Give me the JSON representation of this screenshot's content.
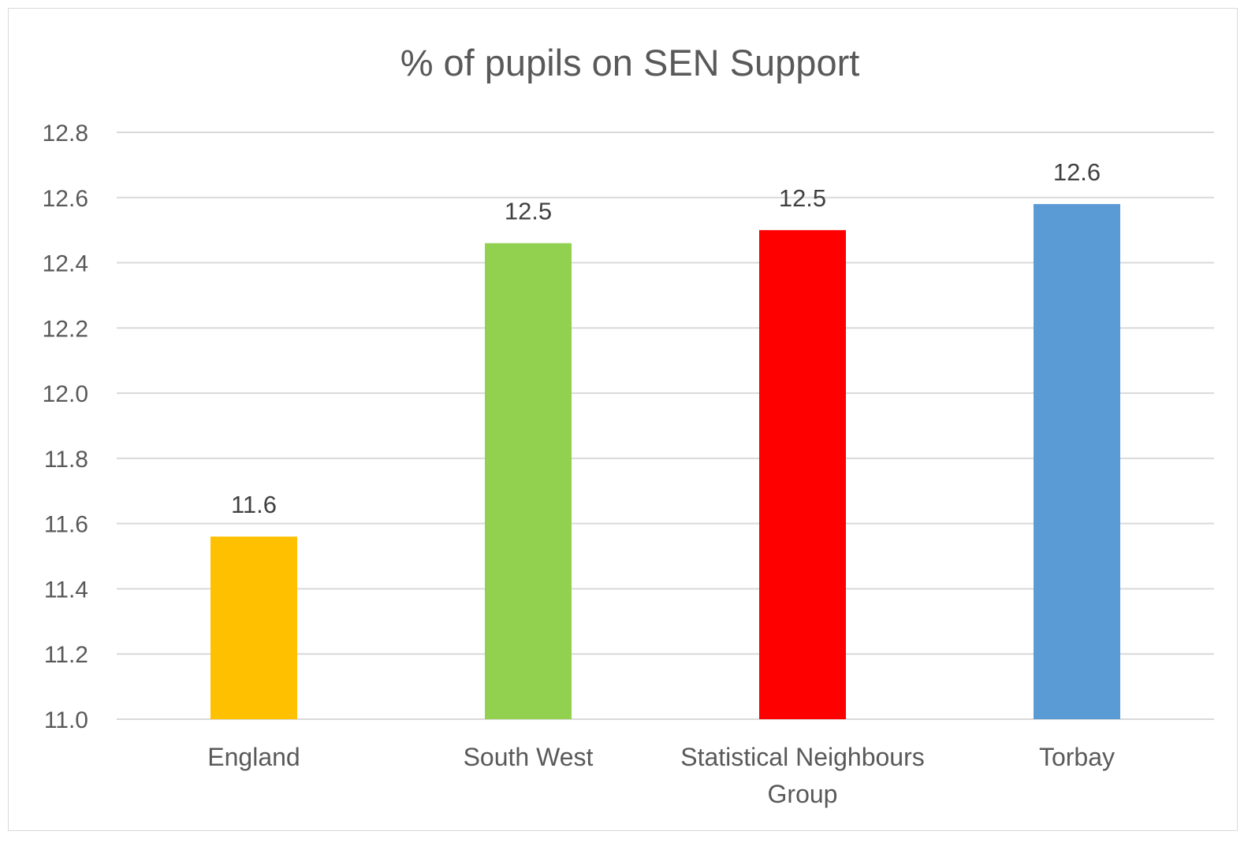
{
  "chart_data": {
    "type": "bar",
    "title": "% of pupils on SEN Support",
    "xlabel": "",
    "ylabel": "",
    "categories": [
      [
        "England"
      ],
      [
        "South West"
      ],
      [
        "Statistical Neighbours",
        "Group"
      ],
      [
        "Torbay"
      ]
    ],
    "values": [
      11.56,
      12.46,
      12.5,
      12.58
    ],
    "data_labels": [
      "11.6",
      "12.5",
      "12.5",
      "12.6"
    ],
    "colors": [
      "#FFC000",
      "#92D050",
      "#FF0000",
      "#5B9BD5"
    ],
    "ylim": [
      11.0,
      12.8
    ],
    "yticks": [
      "11.0",
      "11.2",
      "11.4",
      "11.6",
      "11.8",
      "12.0",
      "12.2",
      "12.4",
      "12.6",
      "12.8"
    ],
    "grid": true,
    "legend": "none"
  }
}
